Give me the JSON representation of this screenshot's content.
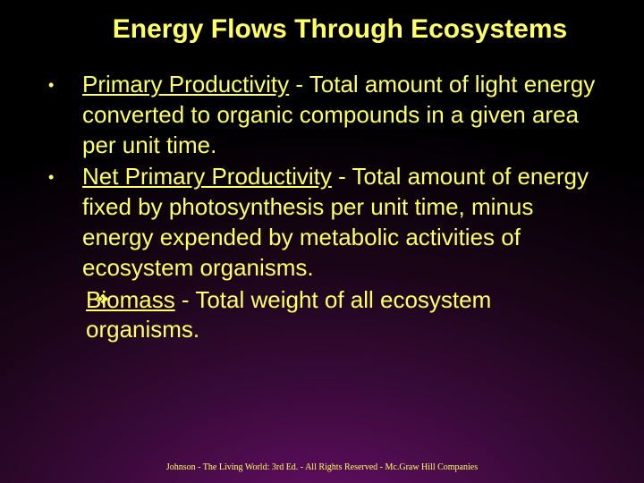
{
  "colors": {
    "title": "#ffff66",
    "body": "#ffff66",
    "bullet": "#ffff66",
    "footer": "#ffff66"
  },
  "typography": {
    "title_fontsize": 30,
    "body_fontsize": 26,
    "footer_fontsize": 10
  },
  "title": "Energy Flows Through Ecosystems",
  "bullets": [
    {
      "term": "Primary Productivity",
      "rest": " - Total amount of light energy converted to organic compounds in a given area per unit time."
    },
    {
      "term": "Net Primary Productivity",
      "rest": " - Total amount of energy fixed by photosynthesis per unit time, minus energy expended by metabolic activities of ecosystem organisms."
    }
  ],
  "subbullet": {
    "term": "Biomass",
    "rest": " - Total weight of all ecosystem organisms."
  },
  "footer": "Johnson - The Living World: 3rd Ed. - All Rights Reserved - Mc.Graw Hill Companies"
}
